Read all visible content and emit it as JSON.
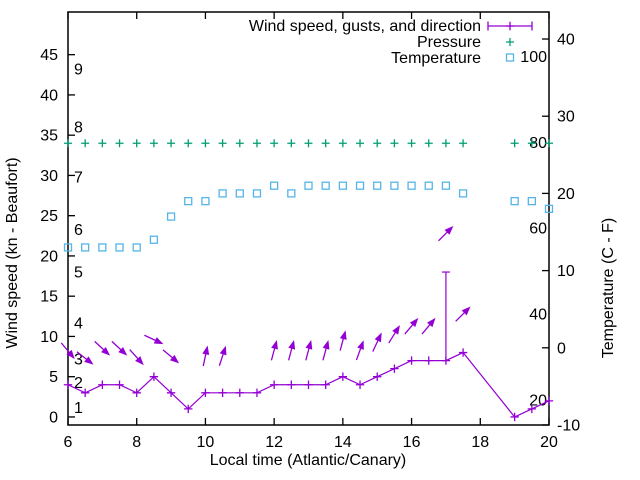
{
  "figure": {
    "background": "#ffffff",
    "text_color": "#000000"
  },
  "chart_data": {
    "type": "line",
    "title": "",
    "xlabel": "Local time (Atlantic/Canary)",
    "ylabel": "Wind speed (kn - Beaufort)",
    "y2label": "Temperature (C - F)",
    "grid": false,
    "legend_position": "top-right-inside",
    "xlim": [
      6,
      20
    ],
    "x_ticks": [
      6,
      8,
      10,
      12,
      14,
      16,
      18,
      20
    ],
    "ylim_left": [
      -1,
      50.3
    ],
    "y_ticks_left": [
      0,
      5,
      10,
      15,
      20,
      25,
      30,
      35,
      40,
      45
    ],
    "ylim_right": [
      -10,
      43.5
    ],
    "y_ticks_right": [
      -10,
      0,
      10,
      20,
      30,
      40
    ],
    "beaufort_labels": [
      {
        "text": "1",
        "kn": 1.2
      },
      {
        "text": "2",
        "kn": 4.3
      },
      {
        "text": "3",
        "kn": 7.2
      },
      {
        "text": "4",
        "kn": 11.7
      },
      {
        "text": "5",
        "kn": 18.0
      },
      {
        "text": "6",
        "kn": 23.3
      },
      {
        "text": "7",
        "kn": 29.8
      },
      {
        "text": "8",
        "kn": 36.0
      },
      {
        "text": "9",
        "kn": 43.2
      }
    ],
    "fahrenheit_labels": [
      {
        "text": "20",
        "C": -6.67
      },
      {
        "text": "40",
        "C": 4.44
      },
      {
        "text": "60",
        "C": 15.56
      },
      {
        "text": "80",
        "C": 26.67
      },
      {
        "text": "100",
        "C": 37.78
      }
    ],
    "legend": [
      {
        "label": "Wind speed, gusts, and direction",
        "marker": "yerrorbar",
        "color": "#9400d3"
      },
      {
        "label": "Pressure",
        "marker": "plus",
        "color": "#009e73"
      },
      {
        "label": "Temperature",
        "marker": "square",
        "color": "#56b4e9"
      }
    ],
    "colors": {
      "wind": "#9400d3",
      "pressure": "#009e73",
      "temperature": "#56b4e9",
      "axis": "#000000"
    },
    "x": [
      6,
      6.5,
      7,
      7.5,
      8,
      8.5,
      9,
      9.5,
      10,
      10.5,
      11,
      11.5,
      12,
      12.5,
      13,
      13.5,
      14,
      14.5,
      15,
      15.5,
      16,
      16.5,
      17,
      17.5,
      19,
      19.5,
      20
    ],
    "wind_speed_kn": [
      4,
      3,
      4,
      4,
      3,
      5,
      3,
      1,
      3,
      3,
      3,
      3,
      4,
      4,
      4,
      4,
      5,
      4,
      5,
      6,
      7,
      7,
      7,
      8,
      0,
      1,
      2
    ],
    "wind_gust_kn": [
      null,
      null,
      null,
      null,
      null,
      null,
      null,
      null,
      null,
      null,
      null,
      null,
      null,
      null,
      null,
      null,
      null,
      null,
      null,
      null,
      null,
      null,
      18,
      null,
      null,
      null,
      null
    ],
    "temperature_C": [
      13,
      13,
      13,
      13,
      13,
      14,
      17,
      19,
      19,
      20,
      20,
      20,
      21,
      20,
      21,
      21,
      21,
      21,
      21,
      21,
      21,
      21,
      21,
      20,
      19,
      19,
      18
    ],
    "pressure": {
      "note": "flat marker row, no pressure scale labeled on plot",
      "plot_value_on_left_axis_kn": 34
    },
    "wind_arrows": [
      {
        "x": 6,
        "y_kn": 8.2,
        "dir_deg": 140
      },
      {
        "x": 6.5,
        "y_kn": 7.3,
        "dir_deg": 128
      },
      {
        "x": 7,
        "y_kn": 8.5,
        "dir_deg": 133
      },
      {
        "x": 7.5,
        "y_kn": 8.5,
        "dir_deg": 133
      },
      {
        "x": 8,
        "y_kn": 7.4,
        "dir_deg": 138
      },
      {
        "x": 8.5,
        "y_kn": 9.6,
        "dir_deg": 115
      },
      {
        "x": 9,
        "y_kn": 7.5,
        "dir_deg": 130
      },
      {
        "x": 10,
        "y_kn": 7.6,
        "dir_deg": 12
      },
      {
        "x": 10.5,
        "y_kn": 7.6,
        "dir_deg": 18
      },
      {
        "x": 12,
        "y_kn": 8.3,
        "dir_deg": 15
      },
      {
        "x": 12.5,
        "y_kn": 8.3,
        "dir_deg": 15
      },
      {
        "x": 13,
        "y_kn": 8.3,
        "dir_deg": 15
      },
      {
        "x": 13.5,
        "y_kn": 8.3,
        "dir_deg": 15
      },
      {
        "x": 14,
        "y_kn": 9.5,
        "dir_deg": 15
      },
      {
        "x": 14.5,
        "y_kn": 8.3,
        "dir_deg": 20
      },
      {
        "x": 15,
        "y_kn": 9.3,
        "dir_deg": 25
      },
      {
        "x": 15.5,
        "y_kn": 10.3,
        "dir_deg": 32
      },
      {
        "x": 16,
        "y_kn": 11.3,
        "dir_deg": 40
      },
      {
        "x": 16.5,
        "y_kn": 11.3,
        "dir_deg": 40
      },
      {
        "x": 17,
        "y_kn": 22.8,
        "dir_deg": 45
      },
      {
        "x": 17.5,
        "y_kn": 12.8,
        "dir_deg": 45
      }
    ]
  }
}
